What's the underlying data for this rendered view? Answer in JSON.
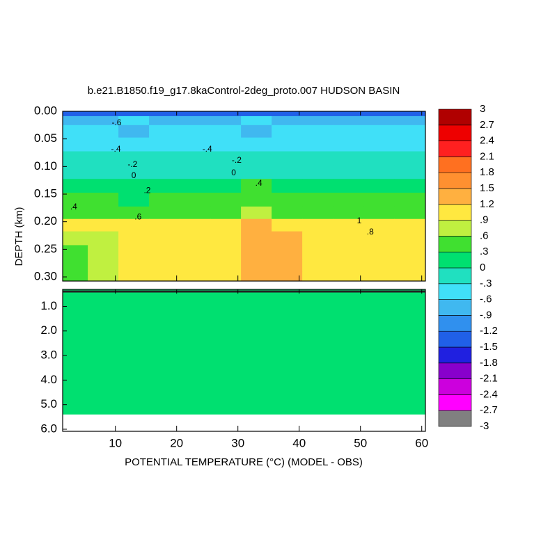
{
  "chart_data": {
    "type": "contour",
    "title": "b.e21.B1850.f19_g17.8kaControl-2deg_proto.007 HUDSON BASIN",
    "xlabel": "POTENTIAL TEMPERATURE (°C) (MODEL - OBS)",
    "ylabel": "DEPTH (km)",
    "xlim": [
      1.4,
      60.6
    ],
    "xticks": [
      10,
      20,
      30,
      40,
      50,
      60
    ],
    "panels": [
      {
        "ylim": [
          0,
          0.3075
        ],
        "yticks": [
          {
            "value": 0,
            "label": "0.00"
          },
          {
            "value": 0.05,
            "label": "0.05"
          },
          {
            "value": 0.1,
            "label": "0.10"
          },
          {
            "value": 0.15,
            "label": "0.15"
          },
          {
            "value": 0.2,
            "label": "0.20"
          },
          {
            "value": 0.25,
            "label": "0.25"
          },
          {
            "value": 0.3,
            "label": "0.30"
          }
        ]
      },
      {
        "ylim": [
          0.3075,
          6.085
        ],
        "yticks": [
          {
            "value": 1,
            "label": "1.0"
          },
          {
            "value": 2,
            "label": "2.0"
          },
          {
            "value": 3,
            "label": "3.0"
          },
          {
            "value": 4,
            "label": "4.0"
          },
          {
            "value": 5,
            "label": "5.0"
          },
          {
            "value": 6,
            "label": "6.0"
          }
        ]
      }
    ],
    "field": {
      "x": [
        3,
        8,
        13,
        18,
        23,
        28,
        33,
        38,
        43,
        48,
        53,
        58
      ],
      "depth": [
        0.0025,
        0.015,
        0.035,
        0.06,
        0.085,
        0.11,
        0.135,
        0.16,
        0.185,
        0.205,
        0.23,
        0.255,
        0.28,
        0.3
      ],
      "values": [
        [
          -1.4,
          -1.4,
          -1.4,
          -1.4,
          -1.4,
          -1.4,
          -1.4,
          -1.4,
          -1.4,
          -1.4,
          -1.4,
          -1.4
        ],
        [
          -0.8,
          -0.7,
          -0.6,
          -0.7,
          -0.8,
          -0.7,
          -0.6,
          -0.7,
          -0.8,
          -0.7,
          -0.7,
          -0.8
        ],
        [
          -0.6,
          -0.6,
          -0.7,
          -0.6,
          -0.5,
          -0.6,
          -0.7,
          -0.6,
          -0.6,
          -0.5,
          -0.6,
          -0.6
        ],
        [
          -0.45,
          -0.45,
          -0.4,
          -0.45,
          -0.4,
          -0.45,
          -0.5,
          -0.45,
          -0.4,
          -0.45,
          -0.5,
          -0.45
        ],
        [
          -0.25,
          -0.3,
          -0.25,
          -0.3,
          -0.25,
          -0.25,
          -0.3,
          -0.3,
          -0.25,
          -0.3,
          -0.25,
          -0.25
        ],
        [
          -0.1,
          -0.1,
          -0.05,
          -0.1,
          -0.1,
          -0.05,
          -0.1,
          -0.1,
          -0.05,
          -0.1,
          -0.1,
          -0.1
        ],
        [
          0.15,
          0.15,
          0.2,
          0.15,
          0.15,
          0.2,
          0.3,
          0.25,
          0.2,
          0.15,
          0.15,
          0.15
        ],
        [
          0.3,
          0.3,
          0.25,
          0.3,
          0.3,
          0.35,
          0.45,
          0.4,
          0.3,
          0.3,
          0.3,
          0.3
        ],
        [
          0.4,
          0.45,
          0.5,
          0.45,
          0.45,
          0.5,
          0.6,
          0.55,
          0.5,
          0.45,
          0.45,
          0.45
        ],
        [
          0.9,
          0.95,
          1.0,
          1.0,
          1.0,
          1.0,
          1.2,
          1.1,
          1.0,
          1.0,
          0.95,
          0.95
        ],
        [
          0.7,
          0.85,
          0.95,
          0.95,
          0.9,
          1.0,
          1.3,
          1.2,
          1.0,
          0.95,
          0.9,
          0.95
        ],
        [
          0.5,
          0.75,
          0.9,
          0.95,
          0.9,
          1.0,
          1.3,
          1.25,
          0.95,
          0.9,
          0.9,
          1.0
        ],
        [
          0.45,
          0.8,
          0.9,
          0.95,
          0.9,
          1.0,
          1.3,
          1.25,
          1.0,
          0.9,
          0.95,
          1.0
        ],
        [
          0.5,
          0.8,
          0.95,
          0.95,
          0.9,
          1.05,
          1.3,
          1.2,
          1.0,
          0.95,
          0.95,
          1.0
        ]
      ]
    },
    "deep": {
      "value": 0.1,
      "bottom": 5.4
    },
    "contour_labels": [
      {
        "text": "-.6",
        "x": 10.2,
        "depth": 0.021
      },
      {
        "text": "-.4",
        "x": 10.1,
        "depth": 0.069
      },
      {
        "text": "-.2",
        "x": 12.8,
        "depth": 0.097
      },
      {
        "text": "0",
        "x": 13,
        "depth": 0.117
      },
      {
        "text": ".2",
        "x": 15.2,
        "depth": 0.144
      },
      {
        "text": ".4",
        "x": 3.2,
        "depth": 0.174
      },
      {
        "text": ".6",
        "x": 13.7,
        "depth": 0.192
      },
      {
        "text": "-.4",
        "x": 25,
        "depth": 0.069
      },
      {
        "text": "-.2",
        "x": 29.8,
        "depth": 0.089
      },
      {
        "text": "0",
        "x": 29.3,
        "depth": 0.112
      },
      {
        "text": ".4",
        "x": 33.4,
        "depth": 0.131
      },
      {
        "text": "1",
        "x": 49.8,
        "depth": 0.199
      },
      {
        "text": ".8",
        "x": 51.6,
        "depth": 0.219
      }
    ],
    "colorbar": {
      "levels": [
        -3,
        {
          "value": -2.7,
          "label": "-2.7"
        },
        -2.4,
        -2.1,
        -1.8,
        -1.5,
        -1.2,
        {
          "value": -0.9,
          "label": "-.9"
        },
        {
          "value": -0.6,
          "label": "-.6"
        },
        {
          "value": -0.3,
          "label": "-.3"
        },
        0,
        {
          "value": 0.3,
          "label": ".3"
        },
        {
          "value": 0.6,
          "label": ".6"
        },
        {
          "value": 0.9,
          "label": ".9"
        },
        1.2,
        1.5,
        1.8,
        2.1,
        2.4,
        2.7,
        3
      ],
      "colors": [
        "#808080",
        "#ff00ff",
        "#cc00dd",
        "#8800cc",
        "#2020e0",
        "#2060e8",
        "#3090ee",
        "#40b8f0",
        "#40e0f8",
        "#20e0c0",
        "#00e070",
        "#40e030",
        "#c0f040",
        "#ffe840",
        "#ffb040",
        "#ff9030",
        "#ff7020",
        "#ff2020",
        "#ee0000",
        "#b00000"
      ]
    }
  }
}
